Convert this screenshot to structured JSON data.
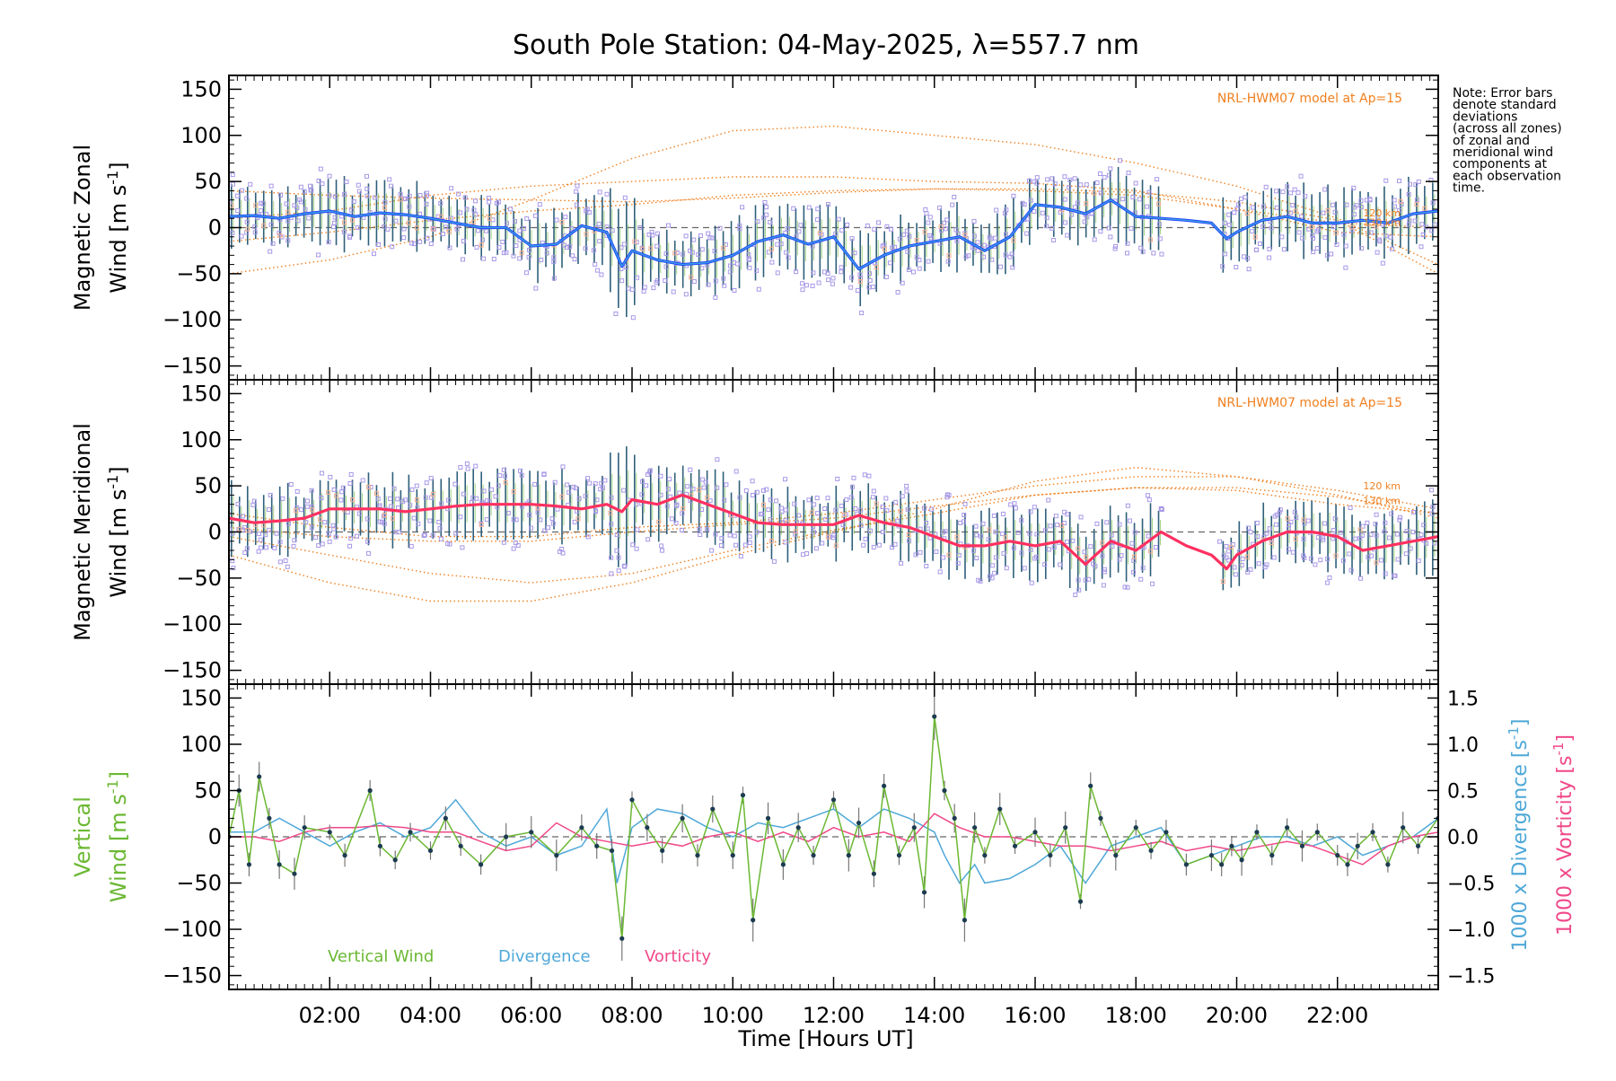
{
  "chart_data": {
    "type": "line",
    "title": "South Pole Station: 04-May-2025, λ=557.7 nm",
    "note": "Note: Error bars denote standard deviations (across all zones) of zonal and meridional wind components at each observation time.",
    "note_lines": [
      "Note: Error bars",
      "denote standard",
      "deviations",
      "(across all zones)",
      "of zonal and",
      "meridional wind",
      "components at",
      "each observation",
      "time."
    ],
    "xlabel": "Time [Hours UT]",
    "xlim": [
      0,
      24
    ],
    "x_tick_labels": [
      "02:00",
      "04:00",
      "06:00",
      "08:00",
      "10:00",
      "12:00",
      "14:00",
      "16:00",
      "18:00",
      "20:00",
      "22:00"
    ],
    "x_tick_values": [
      2,
      4,
      6,
      8,
      10,
      12,
      14,
      16,
      18,
      20,
      22
    ],
    "colors": {
      "zonal_line": "#1e3cff",
      "zonal_light": "#3aa0e0",
      "meridional_line": "#ff3060",
      "model": "#f08020",
      "scatter": "#a898e8",
      "errbar": "#2e5f7a",
      "vertical": "#6bb833",
      "divergence": "#4fa8d8",
      "vorticity": "#f04888",
      "grid_zero": "#666666"
    },
    "panels": [
      {
        "name": "zonal",
        "ylabel_line1": "Magnetic Zonal",
        "ylabel_line2": "Wind [m s",
        "ylabel_sup": "-1",
        "ylabel_end": "]",
        "ylim": [
          -165,
          165
        ],
        "yticks": [
          -150,
          -100,
          -50,
          0,
          50,
          100,
          150
        ],
        "model_label": "NRL-HWM07 model at Ap=15",
        "alt_labels": [
          "120 km",
          "130 km"
        ],
        "series": [
          {
            "name": "Magnetic Zonal Wind",
            "x": [
              0.0,
              0.5,
              1.0,
              1.5,
              2.0,
              2.5,
              3.0,
              3.5,
              4.0,
              4.5,
              5.0,
              5.5,
              6.0,
              6.5,
              7.0,
              7.5,
              7.8,
              8.0,
              8.5,
              9.0,
              9.5,
              10.0,
              10.5,
              11.0,
              11.5,
              12.0,
              12.5,
              13.0,
              13.5,
              14.0,
              14.5,
              15.0,
              15.5,
              16.0,
              16.5,
              17.0,
              17.5,
              18.0,
              18.5,
              19.0,
              19.5,
              19.8,
              20.0,
              20.5,
              21.0,
              21.5,
              22.0,
              22.5,
              23.0,
              23.5,
              24.0
            ],
            "y": [
              12,
              13,
              10,
              15,
              18,
              12,
              16,
              14,
              10,
              5,
              0,
              0,
              -20,
              -18,
              2,
              -5,
              -42,
              -25,
              -35,
              -40,
              -38,
              -30,
              -15,
              -8,
              -18,
              -10,
              -45,
              -30,
              -20,
              -15,
              -10,
              -25,
              -10,
              25,
              22,
              15,
              30,
              12,
              10,
              8,
              5,
              -12,
              -5,
              8,
              12,
              5,
              5,
              8,
              5,
              15,
              18
            ]
          },
          {
            "name": "HWM07 model 120 km",
            "x": [
              0,
              2,
              4,
              6,
              8,
              10,
              12,
              14,
              16,
              18,
              20,
              22,
              24
            ],
            "y": [
              -50,
              -35,
              -10,
              30,
              75,
              105,
              110,
              100,
              90,
              70,
              45,
              10,
              -40
            ]
          },
          {
            "name": "HWM07 model 130 km",
            "x": [
              0,
              2,
              4,
              6,
              8,
              10,
              12,
              14,
              16,
              18,
              20,
              22,
              24
            ],
            "y": [
              10,
              18,
              35,
              45,
              50,
              55,
              55,
              50,
              48,
              40,
              20,
              -5,
              -10
            ]
          },
          {
            "name": "HWM07 model 120 km (b)",
            "x": [
              0,
              2,
              4,
              6,
              8,
              10,
              12,
              14,
              16,
              18,
              20,
              22,
              24
            ],
            "y": [
              40,
              35,
              32,
              30,
              28,
              32,
              38,
              42,
              42,
              38,
              28,
              8,
              -50
            ]
          },
          {
            "name": "HWM07 model 130 km (b)",
            "x": [
              0,
              2,
              4,
              6,
              8,
              10,
              12,
              14,
              16,
              18,
              20,
              22,
              24
            ],
            "y": [
              -15,
              -5,
              8,
              18,
              25,
              35,
              40,
              42,
              40,
              35,
              20,
              5,
              0
            ]
          }
        ]
      },
      {
        "name": "meridional",
        "ylabel_line1": "Magnetic Meridional",
        "ylabel_line2": "Wind [m s",
        "ylabel_sup": "-1",
        "ylabel_end": "]",
        "ylim": [
          -165,
          165
        ],
        "yticks": [
          -150,
          -100,
          -50,
          0,
          50,
          100,
          150
        ],
        "model_label": "NRL-HWM07 model at Ap=15",
        "alt_labels": [
          "120 km",
          "130 km"
        ],
        "series": [
          {
            "name": "Magnetic Meridional Wind",
            "x": [
              0.0,
              0.5,
              1.0,
              1.5,
              2.0,
              2.5,
              3.0,
              3.5,
              4.0,
              4.5,
              5.0,
              5.5,
              6.0,
              6.5,
              7.0,
              7.5,
              7.8,
              8.0,
              8.5,
              9.0,
              9.5,
              10.0,
              10.5,
              11.0,
              11.5,
              12.0,
              12.5,
              13.0,
              13.5,
              14.0,
              14.5,
              15.0,
              15.5,
              16.0,
              16.5,
              17.0,
              17.5,
              18.0,
              18.5,
              19.0,
              19.5,
              19.8,
              20.0,
              20.5,
              21.0,
              21.5,
              22.0,
              22.5,
              23.0,
              23.5,
              24.0
            ],
            "y": [
              15,
              10,
              12,
              15,
              25,
              25,
              25,
              22,
              25,
              28,
              30,
              30,
              30,
              28,
              25,
              30,
              22,
              35,
              30,
              40,
              30,
              20,
              10,
              8,
              8,
              8,
              18,
              10,
              5,
              -5,
              -15,
              -15,
              -10,
              -15,
              -10,
              -35,
              -10,
              -20,
              0,
              -15,
              -25,
              -40,
              -25,
              -10,
              0,
              0,
              -5,
              -20,
              -15,
              -10,
              -5
            ]
          },
          {
            "name": "HWM07 model 120 km",
            "x": [
              0,
              2,
              4,
              6,
              8,
              10,
              12,
              14,
              16,
              18,
              20,
              22,
              24
            ],
            "y": [
              -25,
              -55,
              -75,
              -75,
              -55,
              -25,
              0,
              25,
              55,
              70,
              60,
              40,
              15
            ]
          },
          {
            "name": "HWM07 model 130 km",
            "x": [
              0,
              2,
              4,
              6,
              8,
              10,
              12,
              14,
              16,
              18,
              20,
              22,
              24
            ],
            "y": [
              -5,
              -25,
              -45,
              -55,
              -45,
              -20,
              2,
              20,
              40,
              48,
              45,
              30,
              20
            ]
          },
          {
            "name": "HWM07 model 120 km (b)",
            "x": [
              0,
              2,
              4,
              6,
              8,
              10,
              12,
              14,
              16,
              18,
              20,
              22,
              24
            ],
            "y": [
              20,
              5,
              -5,
              -5,
              5,
              10,
              20,
              35,
              50,
              60,
              60,
              45,
              25
            ]
          },
          {
            "name": "HWM07 model 130 km (b)",
            "x": [
              0,
              2,
              4,
              6,
              8,
              10,
              12,
              14,
              16,
              18,
              20,
              22,
              24
            ],
            "y": [
              5,
              -5,
              -10,
              -10,
              0,
              8,
              15,
              28,
              40,
              48,
              48,
              38,
              20
            ]
          }
        ]
      },
      {
        "name": "vertical",
        "ylabel_line1": "Vertical",
        "ylabel_line2": "Wind [m s",
        "ylabel_sup": "-1",
        "ylabel_end": "]",
        "ylim": [
          -165,
          165
        ],
        "yticks": [
          -150,
          -100,
          -50,
          0,
          50,
          100,
          150
        ],
        "right_ylim": [
          -1.65,
          1.65
        ],
        "right_yticks": [
          -1.5,
          -1.0,
          -0.5,
          0.0,
          0.5,
          1.0,
          1.5
        ],
        "right_ytick_labels": [
          "−1.5",
          "−1.0",
          "−0.5",
          "0.0",
          "0.5",
          "1.0",
          "1.5"
        ],
        "right_label_div": "1000 x Divergence [s",
        "right_label_vort": "1000 x Vorticity [s",
        "right_label_sup": "-1",
        "right_label_end": "]",
        "legend": [
          "Vertical Wind",
          "Divergence",
          "Vorticity"
        ],
        "series": [
          {
            "name": "Vertical Wind",
            "x": [
              0.0,
              0.2,
              0.4,
              0.6,
              0.8,
              1.0,
              1.3,
              1.5,
              2.0,
              2.3,
              2.8,
              3.0,
              3.3,
              3.6,
              4.0,
              4.3,
              4.6,
              5.0,
              5.5,
              6.0,
              6.5,
              7.0,
              7.3,
              7.6,
              7.8,
              8.0,
              8.3,
              8.6,
              9.0,
              9.3,
              9.6,
              10.0,
              10.2,
              10.4,
              10.7,
              11.0,
              11.3,
              11.6,
              12.0,
              12.3,
              12.5,
              12.8,
              13.0,
              13.3,
              13.6,
              13.8,
              14.0,
              14.2,
              14.4,
              14.6,
              14.8,
              15.0,
              15.3,
              15.6,
              16.0,
              16.3,
              16.6,
              16.9,
              17.1,
              17.3,
              17.6,
              18.0,
              18.3,
              18.6,
              19.0,
              19.5,
              19.7,
              19.9,
              20.1,
              20.4,
              20.7,
              21.0,
              21.3,
              21.6,
              22.0,
              22.2,
              22.4,
              22.7,
              23.0,
              23.3,
              23.6,
              24.0
            ],
            "y": [
              0,
              50,
              -30,
              65,
              20,
              -30,
              -40,
              10,
              5,
              -20,
              50,
              -10,
              -25,
              5,
              -15,
              20,
              -10,
              -30,
              0,
              5,
              -20,
              10,
              -10,
              -15,
              -110,
              40,
              10,
              -15,
              20,
              -20,
              30,
              -20,
              45,
              -90,
              20,
              -30,
              10,
              -20,
              40,
              -20,
              15,
              -40,
              55,
              -20,
              10,
              -60,
              130,
              50,
              20,
              -90,
              10,
              -20,
              30,
              -10,
              5,
              -20,
              10,
              -70,
              55,
              20,
              -20,
              10,
              -15,
              5,
              -30,
              -20,
              -30,
              -10,
              -25,
              5,
              -20,
              10,
              -10,
              5,
              -20,
              -30,
              -10,
              5,
              -30,
              10,
              -10,
              20
            ]
          },
          {
            "name": "1000 x Divergence",
            "x": [
              0.0,
              0.5,
              1.0,
              1.5,
              2.0,
              2.5,
              3.0,
              3.5,
              4.0,
              4.5,
              5.0,
              5.5,
              6.0,
              6.5,
              7.0,
              7.5,
              7.7,
              8.0,
              8.5,
              9.0,
              9.5,
              10.0,
              10.5,
              11.0,
              11.5,
              12.0,
              12.5,
              13.0,
              13.5,
              14.0,
              14.2,
              14.5,
              14.8,
              15.0,
              15.5,
              16.0,
              16.5,
              17.0,
              17.5,
              18.0,
              18.5,
              19.0,
              19.5,
              20.0,
              20.5,
              21.0,
              21.5,
              22.0,
              22.5,
              23.0,
              23.5,
              24.0
            ],
            "y": [
              0.05,
              0.05,
              0.2,
              0.05,
              -0.1,
              0.05,
              0.15,
              0.0,
              0.1,
              0.4,
              0.05,
              -0.1,
              0.0,
              -0.2,
              -0.1,
              0.3,
              -0.5,
              0.1,
              0.3,
              0.25,
              0.1,
              0.0,
              0.15,
              0.1,
              0.2,
              0.3,
              0.1,
              0.3,
              0.2,
              0.05,
              -0.2,
              -0.5,
              -0.3,
              -0.5,
              -0.45,
              -0.3,
              -0.1,
              -0.5,
              -0.1,
              0.0,
              0.1,
              -0.3,
              -0.2,
              -0.1,
              0.0,
              0.0,
              -0.1,
              0.0,
              -0.2,
              -0.1,
              0.0,
              0.2
            ]
          },
          {
            "name": "1000 x Vorticity",
            "x": [
              0.0,
              0.5,
              1.0,
              1.5,
              2.0,
              2.5,
              3.0,
              3.5,
              4.0,
              4.5,
              5.0,
              5.5,
              6.0,
              6.5,
              7.0,
              7.5,
              8.0,
              8.5,
              9.0,
              9.5,
              10.0,
              10.5,
              11.0,
              11.5,
              12.0,
              12.5,
              13.0,
              13.5,
              14.0,
              14.5,
              15.0,
              15.5,
              16.0,
              16.5,
              17.0,
              17.5,
              18.0,
              18.5,
              19.0,
              19.5,
              20.0,
              20.5,
              21.0,
              21.5,
              22.0,
              22.5,
              23.0,
              23.5,
              24.0
            ],
            "y": [
              0.0,
              0.0,
              -0.05,
              0.05,
              0.1,
              0.1,
              0.12,
              0.1,
              0.05,
              0.05,
              -0.05,
              -0.15,
              -0.1,
              0.15,
              0.0,
              -0.05,
              -0.1,
              -0.05,
              -0.1,
              0.0,
              0.05,
              -0.05,
              0.05,
              -0.05,
              0.1,
              0.0,
              0.05,
              -0.05,
              0.25,
              0.1,
              0.0,
              0.0,
              -0.05,
              -0.1,
              -0.1,
              -0.15,
              -0.1,
              -0.05,
              -0.15,
              -0.1,
              -0.15,
              -0.1,
              -0.05,
              -0.1,
              -0.2,
              -0.3,
              -0.1,
              0.0,
              0.05
            ]
          }
        ]
      }
    ]
  }
}
